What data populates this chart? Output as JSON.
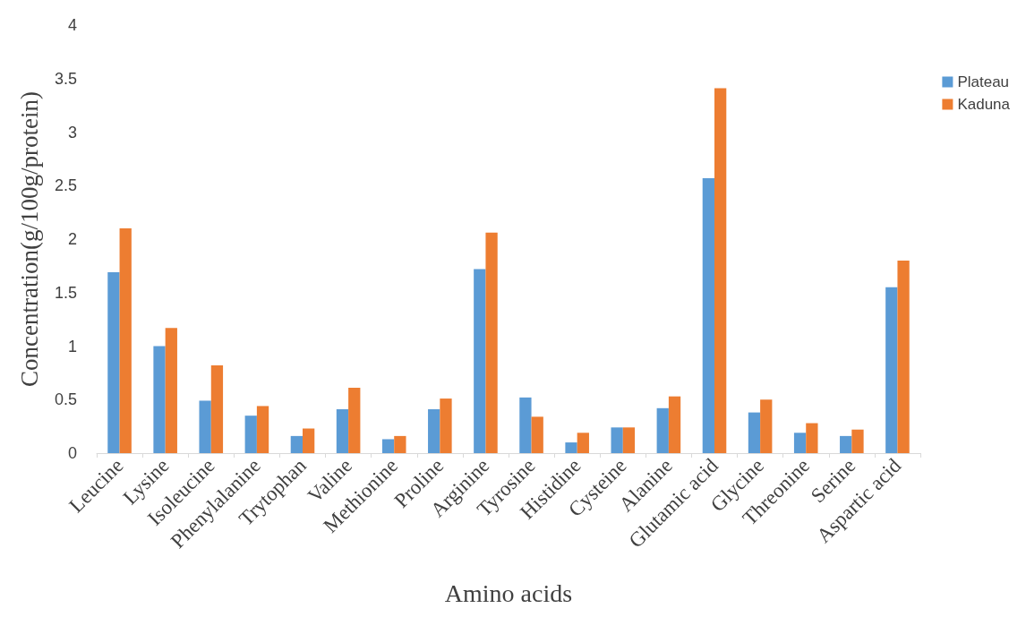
{
  "chart_data": {
    "type": "bar",
    "xlabel": "Amino acids",
    "ylabel": "Concentration(g/100g/protein)",
    "categories": [
      "Leucine",
      "Lysine",
      "Isoleucine",
      "Phenylalanine",
      "Trytophan",
      "Valine",
      "Methionine",
      "Proline",
      "Arginine",
      "Tyrosine",
      "Histidine",
      "Cysteine",
      "Alanine",
      "Glutamic acid",
      "Glycine",
      "Threonine",
      "Serine",
      "Aspartic acid"
    ],
    "series": [
      {
        "name": "Plateau",
        "color": "#5b9bd5",
        "values": [
          1.69,
          1.0,
          0.49,
          0.35,
          0.16,
          0.41,
          0.13,
          0.41,
          1.72,
          0.52,
          0.1,
          0.24,
          0.42,
          2.57,
          0.38,
          0.19,
          0.16,
          1.55
        ]
      },
      {
        "name": "Kaduna",
        "color": "#ed7d31",
        "values": [
          2.1,
          1.17,
          0.82,
          0.44,
          0.23,
          0.61,
          0.16,
          0.51,
          2.06,
          0.34,
          0.19,
          0.24,
          0.53,
          3.41,
          0.5,
          0.28,
          0.22,
          1.8
        ]
      }
    ],
    "ylim": [
      0,
      4
    ],
    "yticks": [
      0,
      0.5,
      1,
      1.5,
      2,
      2.5,
      3,
      3.5,
      4
    ],
    "grid": false,
    "legend": "top right"
  }
}
